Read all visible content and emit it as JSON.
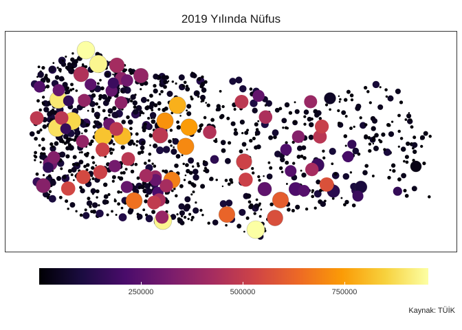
{
  "title": "2019 Yılında Nüfus",
  "caption": "Kaynak: TÜİK",
  "legend": {
    "palette": "inferno",
    "min": 0,
    "max": 950000,
    "ticks": [
      {
        "value": 250000,
        "label": "250000"
      },
      {
        "value": 500000,
        "label": "500000"
      },
      {
        "value": 750000,
        "label": "750000"
      }
    ],
    "colors": [
      "#000004",
      "#1b0c41",
      "#4a0c6b",
      "#781c6d",
      "#a52c60",
      "#cf4446",
      "#ed6925",
      "#fb9b06",
      "#f7d13d",
      "#fcffa4"
    ]
  },
  "chart_data": {
    "type": "scatter",
    "description_of_encoding": "",
    "value_scale": [
      0,
      950000
    ],
    "series": [],
    "highlighted_values": [
      950000,
      930000,
      900000,
      880000,
      860000,
      820000,
      800000,
      780000,
      740000,
      720000,
      700000,
      680000,
      650000,
      620000,
      600000,
      560000,
      520000,
      480000,
      450000,
      420000,
      380000,
      350000,
      300000,
      260000,
      220000,
      180000,
      140000,
      100000,
      60000,
      30000
    ]
  }
}
